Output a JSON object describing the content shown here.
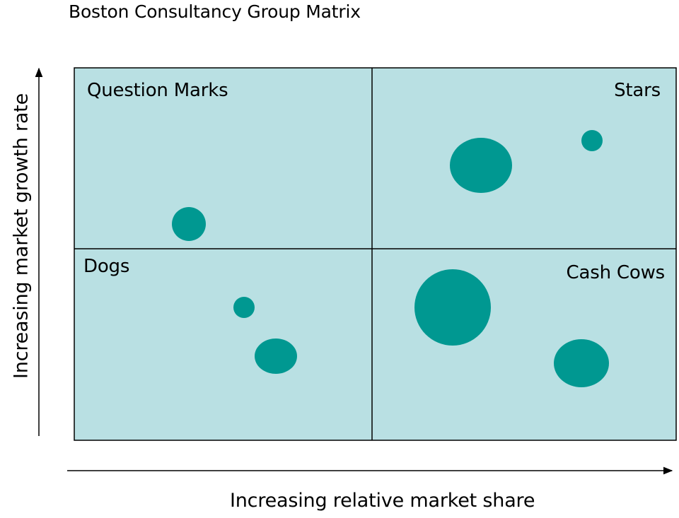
{
  "title": "Boston Consultancy Group Matrix",
  "x_axis_label": "Increasing relative market share",
  "y_axis_label": "Increasing market growth rate",
  "quadrants": {
    "question_marks": "Question Marks",
    "stars": "Stars",
    "dogs": "Dogs",
    "cash_cows": "Cash Cows"
  },
  "colors": {
    "quadrant_fill": "#b9e0e3",
    "bubble_fill": "#009891",
    "line": "#000000"
  },
  "bubble_count": 7
}
